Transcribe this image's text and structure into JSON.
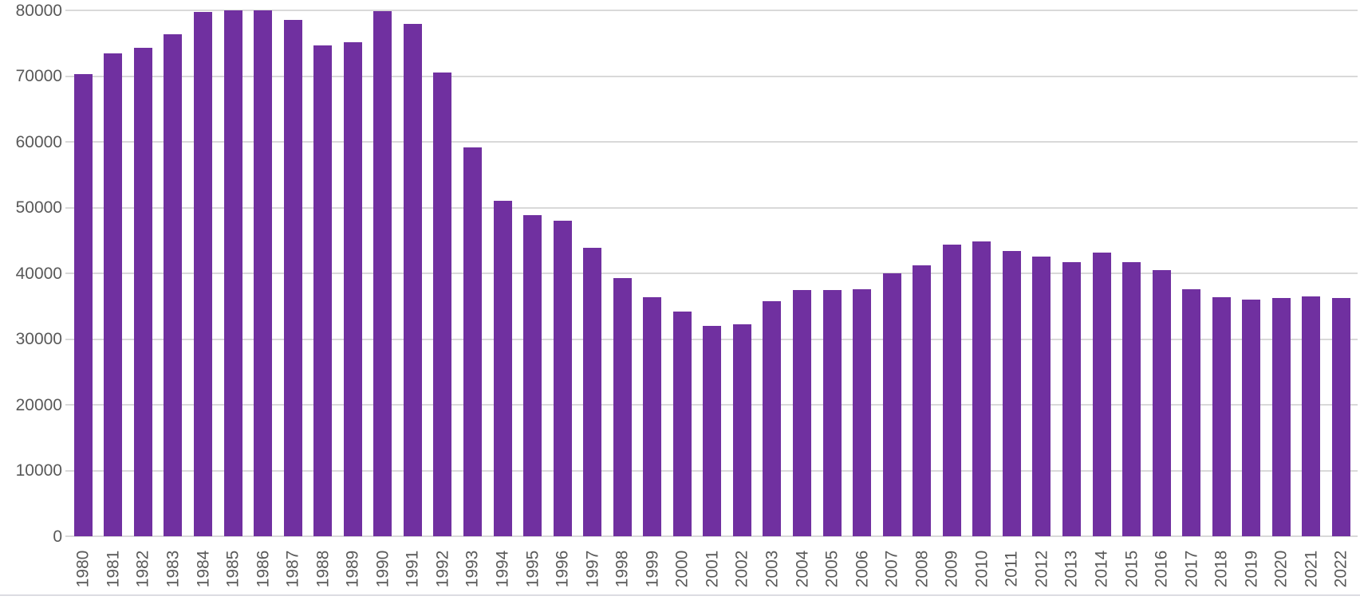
{
  "chart_data": {
    "type": "bar",
    "title": "",
    "xlabel": "",
    "ylabel": "",
    "categories": [
      "1980",
      "1981",
      "1982",
      "1983",
      "1984",
      "1985",
      "1986",
      "1987",
      "1988",
      "1989",
      "1990",
      "1991",
      "1992",
      "1993",
      "1994",
      "1995",
      "1996",
      "1997",
      "1998",
      "1999",
      "2000",
      "2001",
      "2002",
      "2003",
      "2004",
      "2005",
      "2006",
      "2007",
      "2008",
      "2009",
      "2010",
      "2011",
      "2012",
      "2013",
      "2014",
      "2015",
      "2016",
      "2017",
      "2018",
      "2019",
      "2020",
      "2021",
      "2022"
    ],
    "values": [
      70300,
      73500,
      74300,
      76400,
      79800,
      80000,
      80000,
      78500,
      74700,
      75200,
      79900,
      77900,
      70600,
      59100,
      51000,
      48900,
      48000,
      43900,
      39300,
      36400,
      34200,
      32000,
      32200,
      35800,
      37500,
      37500,
      37600,
      40000,
      41200,
      44400,
      44800,
      43400,
      42500,
      41700,
      43200,
      41700,
      40500,
      37600,
      36400,
      36000,
      36200,
      36500,
      36200
    ],
    "ylim": [
      0,
      80000
    ],
    "y_ticks": [
      0,
      10000,
      20000,
      30000,
      40000,
      50000,
      60000,
      70000,
      80000
    ],
    "grid": "horizontal",
    "legend": "none",
    "colors": {
      "bar": "#7030a0",
      "gridline": "#d9d9d9",
      "axis_labels": "#595959"
    }
  }
}
